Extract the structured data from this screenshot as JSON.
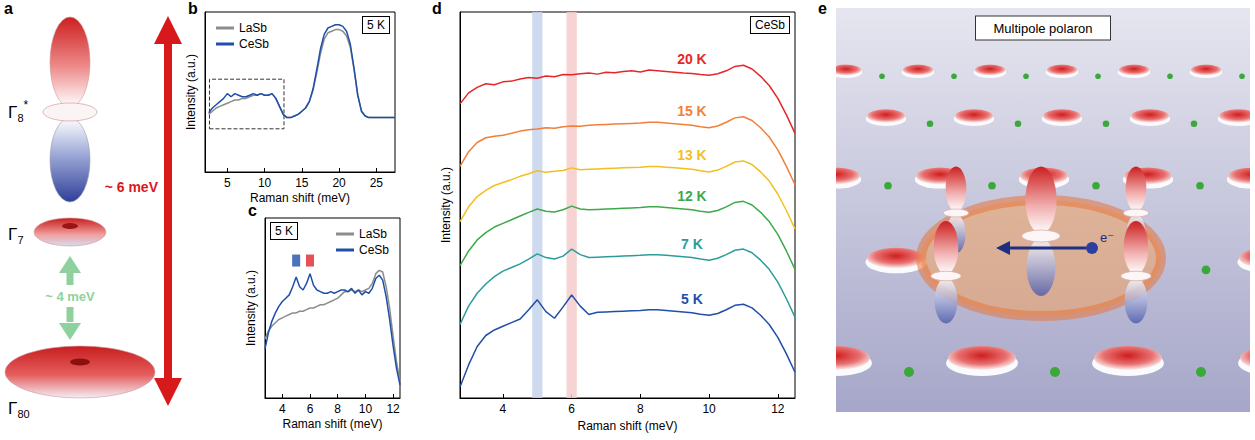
{
  "panel_a": {
    "panel_label": "a",
    "states": [
      {
        "symbol": "Γ",
        "sub": "8",
        "sup": "*"
      },
      {
        "symbol": "Γ",
        "sub": "7"
      },
      {
        "symbol": "Γ",
        "sub": "80"
      }
    ],
    "gaps": [
      {
        "label": "~ 4 meV",
        "color": "#8fd19e"
      },
      {
        "label": "~ 6 meV",
        "color": "#d7191c"
      }
    ]
  },
  "panel_e": {
    "panel_label": "e",
    "title": "Multipole polaron",
    "electron": "e⁻"
  },
  "chart_data": [
    {
      "type": "line",
      "panel_label": "b",
      "annotation": "5 K",
      "x_label": "Raman shift (meV)",
      "y_label": "Intensity (a.u.)",
      "x": [
        2.5,
        3,
        3.5,
        4,
        4.5,
        5,
        5.5,
        6,
        6.5,
        7,
        7.5,
        8,
        8.5,
        9,
        9.5,
        10,
        10.5,
        11,
        11.5,
        12,
        12.5,
        13,
        13.5,
        14,
        14.5,
        15,
        15.5,
        16,
        16.5,
        17,
        17.5,
        18,
        18.5,
        19,
        19.5,
        20,
        20.5,
        21,
        21.5,
        22,
        22.5,
        23,
        23.5,
        24,
        24.5,
        25,
        25.5,
        26,
        26.5,
        27,
        27.5
      ],
      "series": [
        {
          "name": "LaSb",
          "color": "#8c8c8c",
          "values": [
            0.36,
            0.38,
            0.4,
            0.41,
            0.42,
            0.43,
            0.44,
            0.45,
            0.45,
            0.46,
            0.46,
            0.47,
            0.48,
            0.48,
            0.49,
            0.48,
            0.48,
            0.49,
            0.46,
            0.41,
            0.36,
            0.34,
            0.34,
            0.35,
            0.36,
            0.38,
            0.4,
            0.44,
            0.51,
            0.62,
            0.74,
            0.83,
            0.87,
            0.88,
            0.89,
            0.89,
            0.88,
            0.85,
            0.78,
            0.64,
            0.48,
            0.38,
            0.35,
            0.34,
            0.34,
            0.34,
            0.34,
            0.34,
            0.34,
            0.34,
            0.34
          ]
        },
        {
          "name": "CeSb",
          "color": "#1f4fa8",
          "values": [
            0.37,
            0.4,
            0.42,
            0.44,
            0.46,
            0.49,
            0.47,
            0.49,
            0.48,
            0.47,
            0.47,
            0.48,
            0.49,
            0.48,
            0.49,
            0.48,
            0.48,
            0.49,
            0.46,
            0.41,
            0.36,
            0.34,
            0.34,
            0.35,
            0.36,
            0.38,
            0.4,
            0.44,
            0.52,
            0.64,
            0.77,
            0.86,
            0.9,
            0.91,
            0.92,
            0.92,
            0.91,
            0.88,
            0.8,
            0.65,
            0.48,
            0.38,
            0.35,
            0.34,
            0.34,
            0.34,
            0.34,
            0.34,
            0.34,
            0.34,
            0.34
          ]
        }
      ],
      "xlim": [
        2,
        27.5
      ],
      "xticks": [
        5,
        10,
        15,
        20,
        25
      ],
      "ylim": [
        0,
        1
      ],
      "tick_labels": "x",
      "legend": "top-left",
      "zoom_region": {
        "xlim": [
          2.6,
          12.6
        ],
        "ylim": [
          0.27,
          0.58
        ]
      }
    },
    {
      "type": "line",
      "panel_label": "c",
      "annotation": "5 K",
      "x_label": "Raman shift (meV)",
      "y_label": "Intensity (a.u.)",
      "x": [
        2.75,
        3,
        3.25,
        3.5,
        3.75,
        4,
        4.25,
        4.5,
        4.75,
        5,
        5.25,
        5.5,
        5.75,
        6,
        6.25,
        6.5,
        6.75,
        7,
        7.25,
        7.5,
        7.75,
        8,
        8.25,
        8.5,
        8.75,
        9,
        9.25,
        9.5,
        9.75,
        10,
        10.25,
        10.5,
        10.75,
        11,
        11.25,
        11.5,
        11.75,
        12,
        12.25,
        12.5
      ],
      "series": [
        {
          "name": "LaSb",
          "color": "#8c8c8c",
          "values": [
            0.36,
            0.41,
            0.44,
            0.46,
            0.48,
            0.49,
            0.5,
            0.51,
            0.52,
            0.52,
            0.53,
            0.53,
            0.54,
            0.55,
            0.55,
            0.56,
            0.57,
            0.57,
            0.58,
            0.59,
            0.6,
            0.61,
            0.63,
            0.65,
            0.65,
            0.66,
            0.65,
            0.66,
            0.65,
            0.66,
            0.67,
            0.7,
            0.76,
            0.78,
            0.77,
            0.68,
            0.55,
            0.38,
            0.22,
            0.1
          ]
        },
        {
          "name": "CeSb",
          "color": "#1f4fa8",
          "values": [
            0.3,
            0.4,
            0.47,
            0.52,
            0.56,
            0.59,
            0.61,
            0.63,
            0.68,
            0.74,
            0.68,
            0.66,
            0.7,
            0.76,
            0.69,
            0.66,
            0.65,
            0.64,
            0.64,
            0.65,
            0.64,
            0.65,
            0.66,
            0.66,
            0.65,
            0.67,
            0.64,
            0.66,
            0.63,
            0.65,
            0.64,
            0.67,
            0.73,
            0.75,
            0.72,
            0.62,
            0.48,
            0.32,
            0.18,
            0.08
          ]
        }
      ],
      "markers": [
        {
          "x": 5,
          "y": 0.84,
          "color": "#1f4fa8"
        },
        {
          "x": 6,
          "y": 0.84,
          "color": "#e0262b"
        }
      ],
      "xlim": [
        2.75,
        12.5
      ],
      "xticks": [
        4,
        6,
        8,
        10,
        12
      ],
      "ylim": [
        0,
        1.1
      ],
      "tick_labels": "x",
      "legend": "top-right"
    },
    {
      "type": "line",
      "panel_label": "d",
      "annotation": "CeSb",
      "x_label": "Raman shift (meV)",
      "y_label": "Intensity (a.u.)",
      "x": [
        2.75,
        3,
        3.25,
        3.5,
        3.75,
        4,
        4.25,
        4.5,
        4.75,
        5,
        5.25,
        5.5,
        5.75,
        6,
        6.25,
        6.5,
        6.75,
        7,
        7.25,
        7.5,
        7.75,
        8,
        8.25,
        8.5,
        8.75,
        9,
        9.25,
        9.5,
        9.75,
        10,
        10.25,
        10.5,
        10.75,
        11,
        11.25,
        11.5,
        11.75,
        12,
        12.25,
        12.5
      ],
      "series": [
        {
          "name": "20 K",
          "color": "#e8262a",
          "values": [
            8,
            8.3,
            8.45,
            8.55,
            8.52,
            8.6,
            8.62,
            8.68,
            8.72,
            8.7,
            8.76,
            8.74,
            8.8,
            8.79,
            8.82,
            8.84,
            8.81,
            8.86,
            8.85,
            8.88,
            8.9,
            8.87,
            8.92,
            8.9,
            8.88,
            8.86,
            8.84,
            8.83,
            8.8,
            8.78,
            8.82,
            8.9,
            9.02,
            9.05,
            8.95,
            8.75,
            8.5,
            8.15,
            7.7,
            7.2
          ]
        },
        {
          "name": "15 K",
          "color": "#f07f3a",
          "values": [
            6.3,
            6.7,
            6.95,
            7.08,
            7.12,
            7.15,
            7.2,
            7.26,
            7.3,
            7.32,
            7.35,
            7.34,
            7.38,
            7.4,
            7.39,
            7.42,
            7.43,
            7.44,
            7.45,
            7.46,
            7.47,
            7.48,
            7.5,
            7.5,
            7.48,
            7.46,
            7.44,
            7.42,
            7.38,
            7.35,
            7.4,
            7.5,
            7.62,
            7.65,
            7.55,
            7.35,
            7.1,
            6.75,
            6.3,
            5.8
          ]
        },
        {
          "name": "13 K",
          "color": "#f2c01e",
          "values": [
            4.8,
            5.2,
            5.48,
            5.65,
            5.78,
            5.86,
            5.94,
            6.03,
            6.1,
            6.18,
            6.14,
            6.17,
            6.19,
            6.26,
            6.21,
            6.22,
            6.23,
            6.24,
            6.25,
            6.26,
            6.27,
            6.28,
            6.3,
            6.3,
            6.28,
            6.26,
            6.24,
            6.22,
            6.18,
            6.15,
            6.2,
            6.3,
            6.42,
            6.45,
            6.35,
            6.15,
            5.9,
            5.55,
            5.1,
            4.6
          ]
        },
        {
          "name": "12 K",
          "color": "#3daa4a",
          "values": [
            3.6,
            4,
            4.3,
            4.5,
            4.65,
            4.75,
            4.85,
            4.95,
            5.05,
            5.14,
            5.08,
            5.06,
            5.12,
            5.22,
            5.14,
            5.12,
            5.13,
            5.14,
            5.15,
            5.16,
            5.17,
            5.18,
            5.2,
            5.2,
            5.18,
            5.16,
            5.14,
            5.12,
            5.08,
            5.05,
            5.1,
            5.2,
            5.32,
            5.35,
            5.25,
            5.05,
            4.8,
            4.45,
            4,
            3.5
          ]
        },
        {
          "name": "7 K",
          "color": "#2a9d9b",
          "values": [
            2,
            2.5,
            2.85,
            3.1,
            3.3,
            3.45,
            3.55,
            3.65,
            3.78,
            3.92,
            3.82,
            3.78,
            3.86,
            4.05,
            3.9,
            3.82,
            3.83,
            3.84,
            3.85,
            3.86,
            3.87,
            3.88,
            3.9,
            3.9,
            3.88,
            3.86,
            3.84,
            3.82,
            3.78,
            3.75,
            3.8,
            3.9,
            4.02,
            4.05,
            3.95,
            3.75,
            3.5,
            3.15,
            2.7,
            2.2
          ]
        },
        {
          "name": "5 K",
          "color": "#1f4fa8",
          "values": [
            0.3,
            0.9,
            1.4,
            1.7,
            1.85,
            1.95,
            2.05,
            2.15,
            2.4,
            2.67,
            2.35,
            2.17,
            2.48,
            2.8,
            2.5,
            2.27,
            2.33,
            2.34,
            2.35,
            2.36,
            2.37,
            2.38,
            2.4,
            2.4,
            2.38,
            2.36,
            2.34,
            2.32,
            2.28,
            2.25,
            2.3,
            2.4,
            2.52,
            2.55,
            2.45,
            2.25,
            2,
            1.65,
            1.2,
            0.7
          ]
        }
      ],
      "bands": [
        {
          "x": 5,
          "color": "#c5d3ea"
        },
        {
          "x": 6,
          "color": "#f6cccc"
        }
      ],
      "xlim": [
        2.75,
        12.5
      ],
      "xticks": [
        4,
        6,
        8,
        10,
        12
      ],
      "ylim": [
        0,
        10.5
      ],
      "tick_labels": "x"
    }
  ]
}
